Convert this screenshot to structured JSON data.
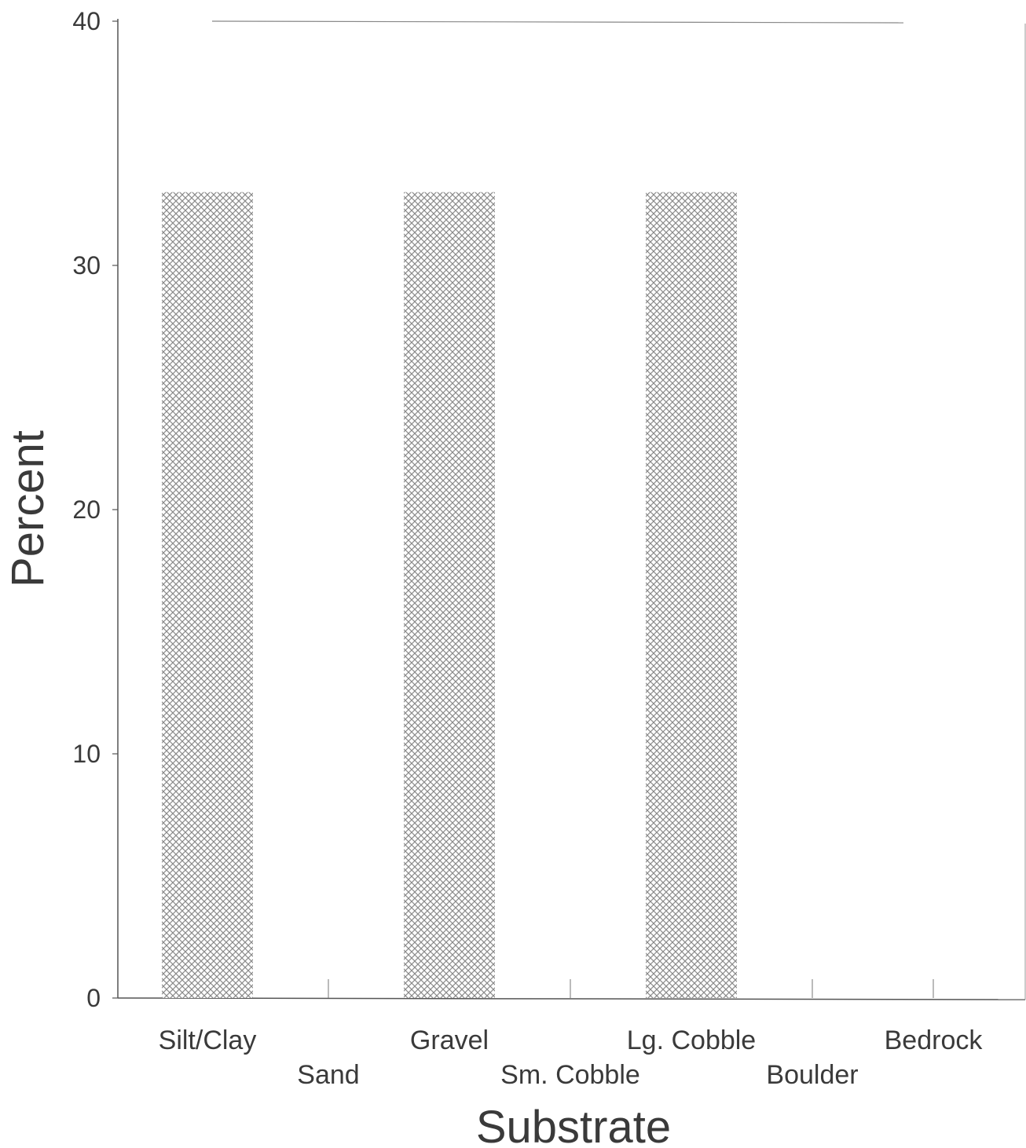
{
  "chart_data": {
    "type": "bar",
    "title": "",
    "xlabel": "Substrate",
    "ylabel": "Percent",
    "ylim": [
      0,
      40
    ],
    "yticks": [
      "0",
      "10",
      "20",
      "30",
      "40"
    ],
    "categories": [
      "Silt/Clay",
      "Sand",
      "Gravel",
      "Sm. Cobble",
      "Lg. Cobble",
      "Boulder",
      "Bedrock"
    ],
    "values": [
      33,
      0,
      33,
      0,
      33,
      0,
      0
    ],
    "bar_fill": "crosshatch",
    "colors": {
      "bar": "#9a9a9a",
      "axis": "#555555",
      "text": "#3a3a3a"
    },
    "grid": false
  }
}
